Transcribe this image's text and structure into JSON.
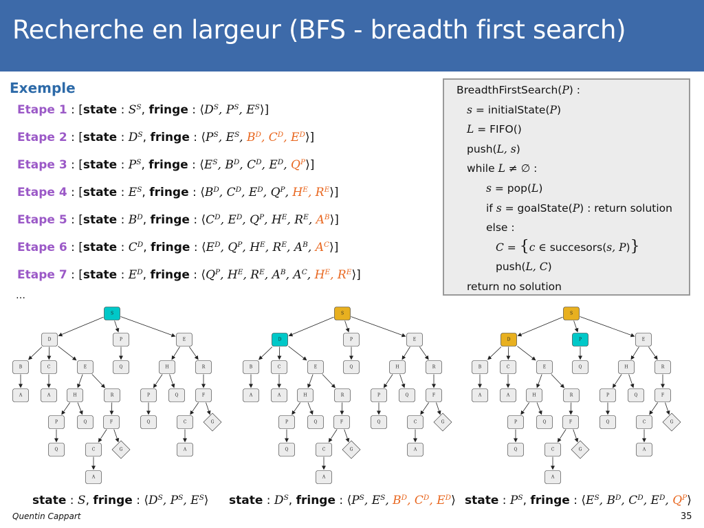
{
  "header": {
    "title": "Recherche en largeur (BFS - breadth first search)"
  },
  "section": {
    "title": "Exemple"
  },
  "labels": {
    "state": "state",
    "fringe": "fringe",
    "sep": " : "
  },
  "steps": [
    {
      "label": "Etape 1",
      "state": {
        "b": "S",
        "s": "S"
      },
      "fringe": [
        {
          "b": "D",
          "s": "S"
        },
        {
          "b": "P",
          "s": "S"
        },
        {
          "b": "E",
          "s": "S"
        }
      ]
    },
    {
      "label": "Etape 2",
      "state": {
        "b": "D",
        "s": "S"
      },
      "fringe": [
        {
          "b": "P",
          "s": "S"
        },
        {
          "b": "E",
          "s": "S"
        },
        {
          "b": "B",
          "s": "D",
          "new": true
        },
        {
          "b": "C",
          "s": "D",
          "new": true
        },
        {
          "b": "E",
          "s": "D",
          "new": true
        }
      ]
    },
    {
      "label": "Etape 3",
      "state": {
        "b": "P",
        "s": "S"
      },
      "fringe": [
        {
          "b": "E",
          "s": "S"
        },
        {
          "b": "B",
          "s": "D"
        },
        {
          "b": "C",
          "s": "D"
        },
        {
          "b": "E",
          "s": "D"
        },
        {
          "b": "Q",
          "s": "P",
          "new": true
        }
      ]
    },
    {
      "label": "Etape 4",
      "state": {
        "b": "E",
        "s": "S"
      },
      "fringe": [
        {
          "b": "B",
          "s": "D"
        },
        {
          "b": "C",
          "s": "D"
        },
        {
          "b": "E",
          "s": "D"
        },
        {
          "b": "Q",
          "s": "P"
        },
        {
          "b": "H",
          "s": "E",
          "new": true
        },
        {
          "b": "R",
          "s": "E",
          "new": true
        }
      ]
    },
    {
      "label": "Etape 5",
      "state": {
        "b": "B",
        "s": "D"
      },
      "fringe": [
        {
          "b": "C",
          "s": "D"
        },
        {
          "b": "E",
          "s": "D"
        },
        {
          "b": "Q",
          "s": "P"
        },
        {
          "b": "H",
          "s": "E"
        },
        {
          "b": "R",
          "s": "E"
        },
        {
          "b": "A",
          "s": "B",
          "new": true
        }
      ]
    },
    {
      "label": "Etape 6",
      "state": {
        "b": "C",
        "s": "D"
      },
      "fringe": [
        {
          "b": "E",
          "s": "D"
        },
        {
          "b": "Q",
          "s": "P"
        },
        {
          "b": "H",
          "s": "E"
        },
        {
          "b": "R",
          "s": "E"
        },
        {
          "b": "A",
          "s": "B"
        },
        {
          "b": "A",
          "s": "C",
          "new": true
        }
      ]
    },
    {
      "label": "Etape 7",
      "state": {
        "b": "E",
        "s": "D"
      },
      "fringe": [
        {
          "b": "Q",
          "s": "P"
        },
        {
          "b": "H",
          "s": "E"
        },
        {
          "b": "R",
          "s": "E"
        },
        {
          "b": "A",
          "s": "B"
        },
        {
          "b": "A",
          "s": "C"
        },
        {
          "b": "H",
          "s": "E",
          "new": true
        },
        {
          "b": "R",
          "s": "E",
          "new": true
        }
      ]
    }
  ],
  "ellipsis": "…",
  "algorithm": {
    "lines": [
      {
        "indent": 0,
        "parts": [
          {
            "t": "BreadthFirstSearch("
          },
          {
            "m": "P"
          },
          {
            "t": ") :"
          }
        ]
      },
      {
        "indent": 1,
        "parts": [
          {
            "m": "s"
          },
          {
            "t": " = initialState("
          },
          {
            "m": "P"
          },
          {
            "t": ")"
          }
        ]
      },
      {
        "indent": 1,
        "parts": [
          {
            "m": "L"
          },
          {
            "t": " = FIFO()"
          }
        ]
      },
      {
        "indent": 1,
        "parts": [
          {
            "t": "push("
          },
          {
            "m": "L, s"
          },
          {
            "t": ")"
          }
        ]
      },
      {
        "indent": 1,
        "parts": [
          {
            "t": "while "
          },
          {
            "m": "L"
          },
          {
            "u": " ≠ ∅"
          },
          {
            "t": " :"
          }
        ]
      },
      {
        "indent": 2,
        "parts": [
          {
            "m": "s"
          },
          {
            "t": " = pop("
          },
          {
            "m": "L"
          },
          {
            "t": ")"
          }
        ]
      },
      {
        "indent": 2,
        "parts": [
          {
            "t": "if "
          },
          {
            "m": "s"
          },
          {
            "t": " = goalState("
          },
          {
            "m": "P"
          },
          {
            "t": ") : return solution"
          }
        ]
      },
      {
        "indent": 2,
        "parts": [
          {
            "t": "else :"
          }
        ]
      },
      {
        "indent": 3,
        "parts": [
          {
            "m": "C"
          },
          {
            "t": " = "
          },
          {
            "u": "{"
          },
          {
            "m": "c"
          },
          {
            "u": " ∈ "
          },
          {
            "t": "succesors("
          },
          {
            "m": "s, P"
          },
          {
            "t": ")"
          },
          {
            "u": "}"
          }
        ]
      },
      {
        "indent": 3,
        "parts": [
          {
            "t": "push("
          },
          {
            "m": "L, C"
          },
          {
            "t": ")"
          }
        ]
      },
      {
        "indent": 1,
        "parts": [
          {
            "t": "return no solution"
          }
        ]
      }
    ]
  },
  "tree": {
    "nodes": [
      {
        "id": "S",
        "label": "S",
        "shape": "rect"
      },
      {
        "id": "D",
        "label": "D",
        "shape": "rect"
      },
      {
        "id": "P",
        "label": "P",
        "shape": "rect"
      },
      {
        "id": "E",
        "label": "E",
        "shape": "rect"
      },
      {
        "id": "B1",
        "label": "B",
        "shape": "rect"
      },
      {
        "id": "C1",
        "label": "C",
        "shape": "rect"
      },
      {
        "id": "E2",
        "label": "E",
        "shape": "rect"
      },
      {
        "id": "Q1",
        "label": "Q",
        "shape": "rect"
      },
      {
        "id": "H1",
        "label": "H",
        "shape": "rect"
      },
      {
        "id": "R1",
        "label": "R",
        "shape": "rect"
      },
      {
        "id": "A1",
        "label": "A",
        "shape": "rect"
      },
      {
        "id": "A2",
        "label": "A",
        "shape": "rect"
      },
      {
        "id": "H2",
        "label": "H",
        "shape": "rect"
      },
      {
        "id": "R2",
        "label": "R",
        "shape": "rect"
      },
      {
        "id": "P2",
        "label": "P",
        "shape": "rect"
      },
      {
        "id": "Q2",
        "label": "Q",
        "shape": "rect"
      },
      {
        "id": "F1",
        "label": "F",
        "shape": "rect"
      },
      {
        "id": "P3",
        "label": "P",
        "shape": "rect"
      },
      {
        "id": "Q3",
        "label": "Q",
        "shape": "rect"
      },
      {
        "id": "F2",
        "label": "F",
        "shape": "rect"
      },
      {
        "id": "Q4",
        "label": "Q",
        "shape": "rect"
      },
      {
        "id": "C2",
        "label": "C",
        "shape": "rect"
      },
      {
        "id": "G1",
        "label": "G",
        "shape": "diamond"
      },
      {
        "id": "Q5",
        "label": "Q",
        "shape": "rect"
      },
      {
        "id": "C3",
        "label": "C",
        "shape": "rect"
      },
      {
        "id": "G2",
        "label": "G",
        "shape": "diamond"
      },
      {
        "id": "A3",
        "label": "A",
        "shape": "rect"
      },
      {
        "id": "A4",
        "label": "A",
        "shape": "rect"
      }
    ],
    "edges": [
      [
        "S",
        "D"
      ],
      [
        "S",
        "P"
      ],
      [
        "S",
        "E"
      ],
      [
        "D",
        "B1"
      ],
      [
        "D",
        "C1"
      ],
      [
        "D",
        "E2"
      ],
      [
        "P",
        "Q1"
      ],
      [
        "E",
        "H1"
      ],
      [
        "E",
        "R1"
      ],
      [
        "B1",
        "A1"
      ],
      [
        "C1",
        "A2"
      ],
      [
        "E2",
        "H2"
      ],
      [
        "E2",
        "R2"
      ],
      [
        "H1",
        "P2"
      ],
      [
        "H1",
        "Q2"
      ],
      [
        "R1",
        "F1"
      ],
      [
        "H2",
        "P3"
      ],
      [
        "H2",
        "Q3"
      ],
      [
        "R2",
        "F2"
      ],
      [
        "P2",
        "Q4"
      ],
      [
        "F1",
        "C2"
      ],
      [
        "F1",
        "G1"
      ],
      [
        "P3",
        "Q5"
      ],
      [
        "F2",
        "C3"
      ],
      [
        "F2",
        "G2"
      ],
      [
        "C2",
        "A3"
      ],
      [
        "C3",
        "A4"
      ]
    ]
  },
  "panels": [
    {
      "colors": {
        "S": "#00c8c8"
      },
      "caption": {
        "state": {
          "b": "S"
        },
        "fringe": [
          {
            "b": "D",
            "s": "S"
          },
          {
            "b": "P",
            "s": "S"
          },
          {
            "b": "E",
            "s": "S"
          }
        ]
      }
    },
    {
      "colors": {
        "S": "#e8b020",
        "D": "#00c8c8"
      },
      "caption": {
        "state": {
          "b": "D",
          "s": "S"
        },
        "fringe": [
          {
            "b": "P",
            "s": "S"
          },
          {
            "b": "E",
            "s": "S"
          },
          {
            "b": "B",
            "s": "D",
            "new": true
          },
          {
            "b": "C",
            "s": "D",
            "new": true
          },
          {
            "b": "E",
            "s": "D",
            "new": true
          }
        ]
      }
    },
    {
      "colors": {
        "S": "#e8b020",
        "D": "#e8b020",
        "P": "#00c8c8"
      },
      "caption": {
        "state": {
          "b": "P",
          "s": "S"
        },
        "fringe": [
          {
            "b": "E",
            "s": "S"
          },
          {
            "b": "B",
            "s": "D"
          },
          {
            "b": "C",
            "s": "D"
          },
          {
            "b": "E",
            "s": "D"
          },
          {
            "b": "Q",
            "s": "P",
            "new": true
          }
        ]
      }
    }
  ],
  "footer": {
    "author": "Quentin Cappart",
    "page": "35"
  }
}
